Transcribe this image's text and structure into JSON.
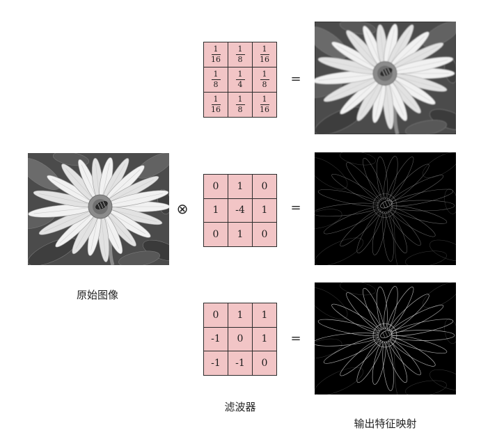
{
  "labels": {
    "original_image": "原始图像",
    "filters": "滤波器",
    "output_feature_maps": "输出特征映射"
  },
  "operators": {
    "convolve": "⊗",
    "equals": "="
  },
  "filters": [
    {
      "cells": [
        [
          {
            "num": "1",
            "den": "16"
          },
          {
            "num": "1",
            "den": "8"
          },
          {
            "num": "1",
            "den": "16"
          }
        ],
        [
          {
            "num": "1",
            "den": "8"
          },
          {
            "num": "1",
            "den": "4"
          },
          {
            "num": "1",
            "den": "8"
          }
        ],
        [
          {
            "num": "1",
            "den": "16"
          },
          {
            "num": "1",
            "den": "8"
          },
          {
            "num": "1",
            "den": "16"
          }
        ]
      ]
    },
    {
      "cells": [
        [
          "0",
          "1",
          "0"
        ],
        [
          "1",
          "-4",
          "1"
        ],
        [
          "0",
          "1",
          "0"
        ]
      ]
    },
    {
      "cells": [
        [
          "0",
          "1",
          "1"
        ],
        [
          "-1",
          "0",
          "1"
        ],
        [
          "-1",
          "-1",
          "0"
        ]
      ]
    }
  ],
  "colors": {
    "filter_cell": "#f2c5c6",
    "filter_grid_line": "#2b2b2b",
    "feature_map_background": "#000000"
  }
}
